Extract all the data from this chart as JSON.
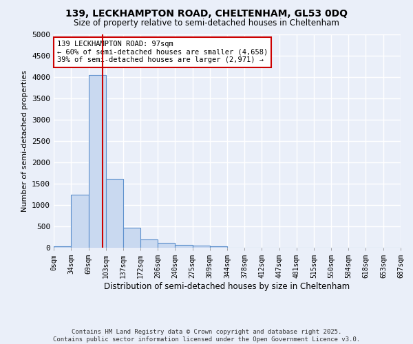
{
  "title": "139, LECKHAMPTON ROAD, CHELTENHAM, GL53 0DQ",
  "subtitle": "Size of property relative to semi-detached houses in Cheltenham",
  "xlabel": "Distribution of semi-detached houses by size in Cheltenham",
  "ylabel": "Number of semi-detached properties",
  "bin_edges": [
    0,
    34,
    69,
    103,
    137,
    172,
    206,
    240,
    275,
    309,
    344,
    378,
    412,
    447,
    481,
    515,
    550,
    584,
    618,
    653,
    687
  ],
  "bar_heights": [
    30,
    1250,
    4050,
    1620,
    470,
    200,
    120,
    70,
    45,
    40,
    0,
    0,
    0,
    0,
    0,
    0,
    0,
    0,
    0,
    0
  ],
  "bar_color": "#c9d9f0",
  "bar_edge_color": "#5b8fcc",
  "property_size": 97,
  "vline_color": "#cc0000",
  "annotation_line1": "139 LECKHAMPTON ROAD: 97sqm",
  "annotation_line2": "← 60% of semi-detached houses are smaller (4,658)",
  "annotation_line3": "39% of semi-detached houses are larger (2,971) →",
  "annotation_box_color": "#cc0000",
  "ylim": [
    0,
    5000
  ],
  "yticks": [
    0,
    500,
    1000,
    1500,
    2000,
    2500,
    3000,
    3500,
    4000,
    4500,
    5000
  ],
  "bg_color": "#eaeff9",
  "plot_bg_color": "#eaeff9",
  "grid_color": "#ffffff",
  "footer_line1": "Contains HM Land Registry data © Crown copyright and database right 2025.",
  "footer_line2": "Contains public sector information licensed under the Open Government Licence v3.0."
}
